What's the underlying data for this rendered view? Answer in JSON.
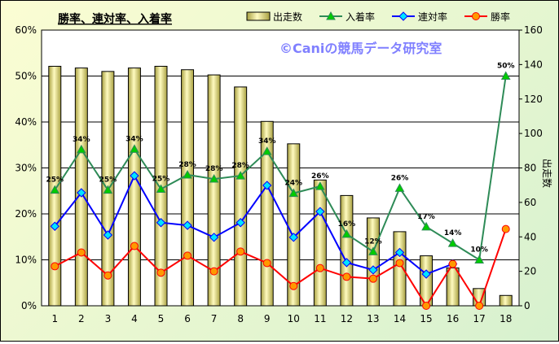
{
  "chart_data": {
    "type": "bar+line",
    "title": "勝率、連対率、入着率",
    "watermark": "©Caniの競馬データ研究室",
    "ylabel_right": "出走数",
    "categories": [
      "1",
      "2",
      "3",
      "4",
      "5",
      "6",
      "7",
      "8",
      "9",
      "10",
      "11",
      "12",
      "13",
      "14",
      "15",
      "16",
      "17",
      "18"
    ],
    "y_left": {
      "min": 0,
      "max": 60,
      "ticks": [
        "0%",
        "10%",
        "20%",
        "30%",
        "40%",
        "50%",
        "60%"
      ]
    },
    "y_right": {
      "min": 0,
      "max": 160,
      "ticks": [
        "0",
        "20",
        "40",
        "60",
        "80",
        "100",
        "120",
        "140",
        "160"
      ]
    },
    "grid": true,
    "legend_position": "top",
    "series": [
      {
        "name": "出走数",
        "kind": "bar",
        "axis": "right",
        "color": "#e6e08a",
        "values": [
          139,
          138,
          136,
          138,
          139,
          137,
          134,
          127,
          107,
          94,
          73,
          64,
          51,
          43,
          29,
          22,
          10,
          6
        ]
      },
      {
        "name": "入着率",
        "kind": "line",
        "axis": "left",
        "color": "#2e8b57",
        "marker": "triangle",
        "marker_fill": "#00cc00",
        "values": [
          25.2,
          34.0,
          25.2,
          34.1,
          25.4,
          28.5,
          27.6,
          28.3,
          33.6,
          24.5,
          26.0,
          15.6,
          11.8,
          25.6,
          17.2,
          13.6,
          10.0,
          50.0
        ],
        "labels": [
          "25%",
          "34%",
          "25%",
          "34%",
          "25%",
          "28%",
          "28%",
          "28%",
          "34%",
          "24%",
          "26%",
          "16%",
          "12%",
          "26%",
          "17%",
          "14%",
          "10%",
          "50%"
        ]
      },
      {
        "name": "連対率",
        "kind": "line",
        "axis": "left",
        "color": "#0000ff",
        "marker": "diamond",
        "marker_fill": "#00e5ff",
        "values": [
          17.3,
          24.6,
          15.4,
          28.3,
          18.1,
          17.5,
          14.9,
          18.1,
          26.2,
          14.9,
          20.5,
          9.4,
          7.8,
          11.6,
          6.9,
          9.1,
          null,
          null
        ]
      },
      {
        "name": "勝率",
        "kind": "line",
        "axis": "left",
        "color": "#ff0000",
        "marker": "circle",
        "marker_fill": "#ff9900",
        "values": [
          8.6,
          11.6,
          6.6,
          13.0,
          7.2,
          10.9,
          7.5,
          11.8,
          9.3,
          4.3,
          8.2,
          6.3,
          5.9,
          9.3,
          0.0,
          9.1,
          0.0,
          16.7
        ]
      }
    ]
  }
}
